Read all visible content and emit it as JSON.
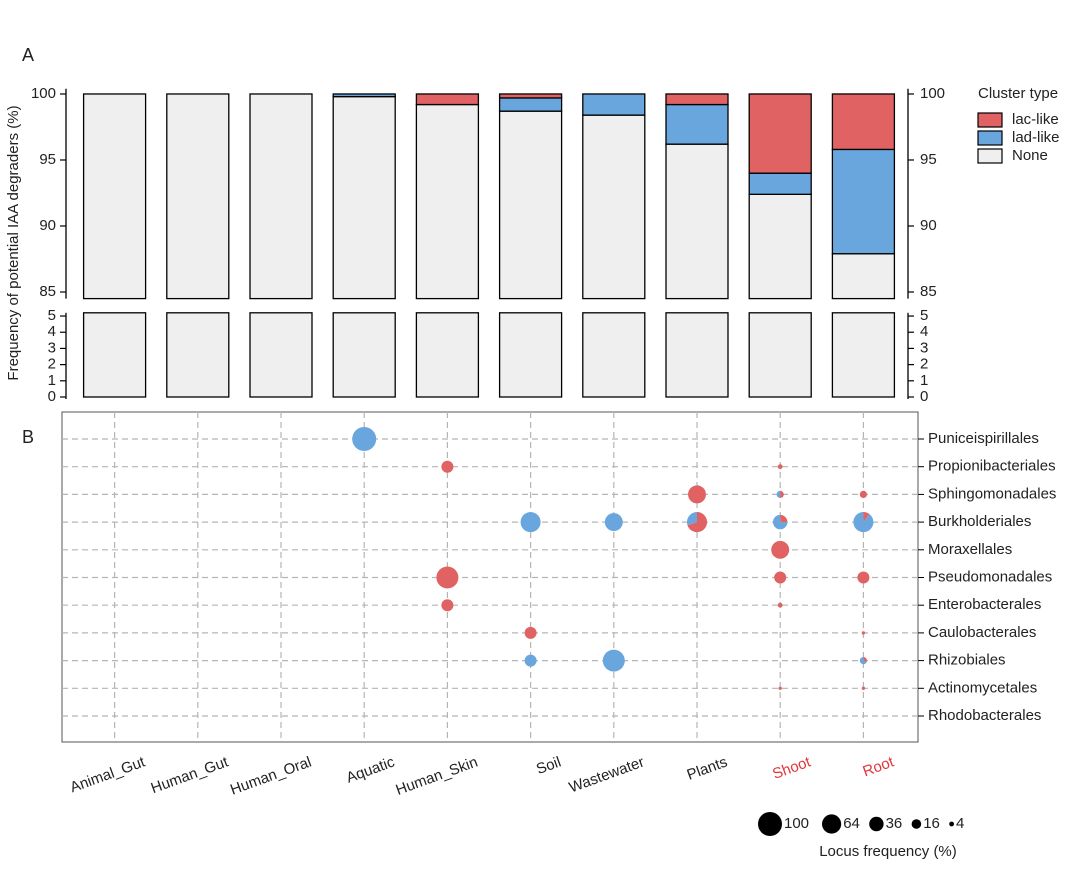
{
  "chart_data": [
    {
      "type": "bar",
      "stacked": true,
      "panel_label": "A",
      "y_label": "Frequency of potential IAA degraders (%)",
      "categories": [
        "Animal_Gut",
        "Human_Gut",
        "Human_Oral",
        "Aquatic",
        "Human_Skin",
        "Soil",
        "Wastewater",
        "Plants",
        "Shoot",
        "Root"
      ],
      "series": [
        {
          "name": "lac-like",
          "color": "#e06262",
          "values": [
            0,
            0,
            0,
            0,
            0.8,
            0.3,
            0,
            0.8,
            6.0,
            4.2
          ]
        },
        {
          "name": "lad-like",
          "color": "#6aa6de",
          "values": [
            0,
            0,
            0,
            0.2,
            0,
            1.0,
            1.6,
            3.0,
            1.6,
            7.9
          ]
        },
        {
          "name": "None",
          "color": "#efefef",
          "values": [
            100,
            100,
            100,
            99.8,
            99.2,
            98.7,
            98.4,
            96.2,
            92.4,
            87.9
          ]
        }
      ],
      "legend_title": "Cluster type",
      "ylim_segments": [
        [
          0,
          5.2
        ],
        [
          84.5,
          100.4
        ]
      ],
      "yticks": [
        0,
        1,
        2,
        3,
        4,
        5,
        85,
        90,
        95,
        100
      ],
      "right_axis": true
    },
    {
      "type": "bubble",
      "panel_label": "B",
      "rows": [
        "Puniceispirillales",
        "Propionibacteriales",
        "Sphingomonadales",
        "Burkholderiales",
        "Moraxellales",
        "Pseudomonadales",
        "Enterobacterales",
        "Caulobacterales",
        "Rhizobiales",
        "Actinomycetales",
        "Rhodobacterales"
      ],
      "points": [
        {
          "x": "Aquatic",
          "y": "Puniceispirillales",
          "size": 100,
          "shares": [
            0,
            100
          ]
        },
        {
          "x": "Human_Skin",
          "y": "Propionibacteriales",
          "size": 25,
          "shares": [
            100,
            0
          ]
        },
        {
          "x": "Human_Skin",
          "y": "Pseudomonadales",
          "size": 84,
          "shares": [
            100,
            0
          ]
        },
        {
          "x": "Human_Skin",
          "y": "Enterobacterales",
          "size": 25,
          "shares": [
            100,
            0
          ]
        },
        {
          "x": "Soil",
          "y": "Burkholderiales",
          "size": 70,
          "shares": [
            0,
            100
          ]
        },
        {
          "x": "Soil",
          "y": "Caulobacterales",
          "size": 25,
          "shares": [
            100,
            0
          ]
        },
        {
          "x": "Soil",
          "y": "Rhizobiales",
          "size": 25,
          "shares": [
            0,
            100
          ]
        },
        {
          "x": "Wastewater",
          "y": "Burkholderiales",
          "size": 56,
          "shares": [
            0,
            100
          ]
        },
        {
          "x": "Wastewater",
          "y": "Rhizobiales",
          "size": 84,
          "shares": [
            0,
            100
          ]
        },
        {
          "x": "Plants",
          "y": "Sphingomonadales",
          "size": 56,
          "shares": [
            100,
            0
          ]
        },
        {
          "x": "Plants",
          "y": "Burkholderiales",
          "size": 70,
          "shares": [
            70,
            30
          ]
        },
        {
          "x": "Shoot",
          "y": "Propionibacteriales",
          "size": 4,
          "shares": [
            100,
            0
          ]
        },
        {
          "x": "Shoot",
          "y": "Sphingomonadales",
          "size": 9,
          "shares": [
            50,
            50
          ]
        },
        {
          "x": "Shoot",
          "y": "Burkholderiales",
          "size": 36,
          "shares": [
            25,
            75
          ]
        },
        {
          "x": "Shoot",
          "y": "Moraxellales",
          "size": 56,
          "shares": [
            100,
            0
          ]
        },
        {
          "x": "Shoot",
          "y": "Pseudomonadales",
          "size": 25,
          "shares": [
            100,
            0
          ]
        },
        {
          "x": "Shoot",
          "y": "Enterobacterales",
          "size": 4,
          "shares": [
            100,
            0
          ]
        },
        {
          "x": "Shoot",
          "y": "Actinomycetales",
          "size": 2,
          "shares": [
            100,
            0
          ]
        },
        {
          "x": "Root",
          "y": "Sphingomonadales",
          "size": 9,
          "shares": [
            100,
            0
          ]
        },
        {
          "x": "Root",
          "y": "Burkholderiales",
          "size": 70,
          "shares": [
            10,
            90
          ]
        },
        {
          "x": "Root",
          "y": "Pseudomonadales",
          "size": 25,
          "shares": [
            100,
            0
          ]
        },
        {
          "x": "Root",
          "y": "Caulobacterales",
          "size": 2,
          "shares": [
            100,
            0
          ]
        },
        {
          "x": "Root",
          "y": "Rhizobiales",
          "size": 9,
          "shares": [
            30,
            70
          ]
        },
        {
          "x": "Root",
          "y": "Actinomycetales",
          "size": 2,
          "shares": [
            100,
            0
          ]
        }
      ],
      "highlighted": [
        "Shoot",
        "Root"
      ],
      "highlight_color": "#e3343a",
      "size_legend": {
        "title": "Locus frequency (%)",
        "sizes": [
          100,
          64,
          36,
          16,
          4
        ]
      }
    }
  ]
}
